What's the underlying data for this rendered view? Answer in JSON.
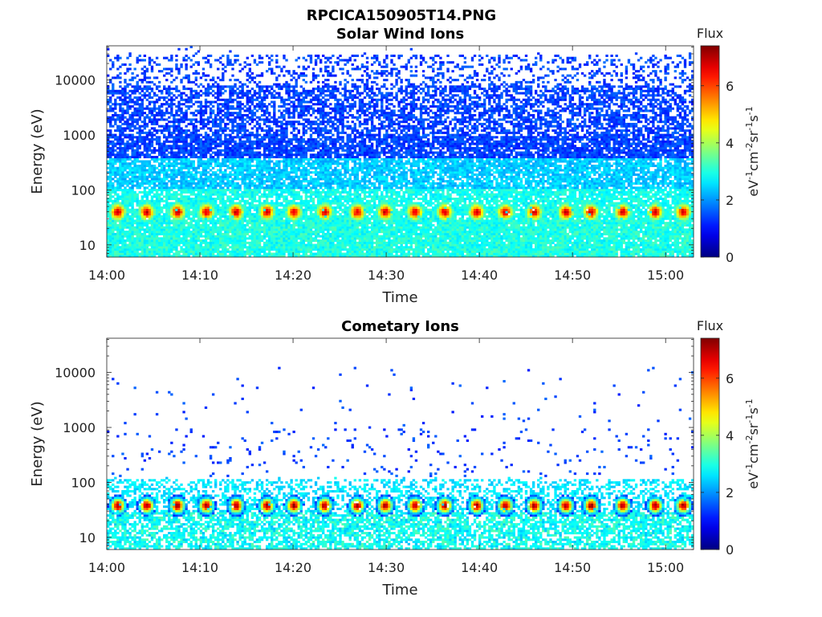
{
  "figure_title": "RPCICA150905T14.PNG",
  "chart_data": [
    {
      "type": "heatmap",
      "title": "Solar Wind Ions",
      "xlabel": "Time",
      "ylabel": "Energy (eV)",
      "x_ticks": [
        "14:00",
        "14:10",
        "14:20",
        "14:30",
        "14:40",
        "14:50",
        "15:00"
      ],
      "y_ticks": [
        "10",
        "100",
        "1000",
        "10000"
      ],
      "y_tick_values": [
        10,
        100,
        1000,
        10000
      ],
      "y_scale": "log",
      "ylim": [
        6,
        42000
      ],
      "xlim_minutes": [
        0,
        63
      ],
      "colorbar": {
        "title": "Flux",
        "unit": "eV-1cm-2sr-1s-1",
        "ticks": [
          "0",
          "2",
          "4",
          "6"
        ],
        "range": [
          0,
          7.4
        ],
        "colormap": "jet"
      },
      "peak_energy_ev": 40,
      "peak_times_min": [
        1.2,
        4.3,
        7.6,
        10.7,
        13.9,
        17.2,
        20.1,
        23.4,
        26.9,
        29.9,
        33.1,
        36.3,
        39.7,
        42.8,
        45.9,
        49.3,
        52.0,
        55.4,
        58.9,
        61.9
      ],
      "peak_flux": 6.8,
      "background_flux": 2.2,
      "max_energy_ev": 30000
    },
    {
      "type": "heatmap",
      "title": "Cometary Ions",
      "xlabel": "Time",
      "ylabel": "Energy (eV)",
      "x_ticks": [
        "14:00",
        "14:10",
        "14:20",
        "14:30",
        "14:40",
        "14:50",
        "15:00"
      ],
      "y_ticks": [
        "10",
        "100",
        "1000",
        "10000"
      ],
      "y_tick_values": [
        10,
        100,
        1000,
        10000
      ],
      "y_scale": "log",
      "ylim": [
        6,
        42000
      ],
      "xlim_minutes": [
        0,
        63
      ],
      "colorbar": {
        "title": "Flux",
        "unit": "eV-1cm-2sr-1s-1",
        "ticks": [
          "0",
          "2",
          "4",
          "6"
        ],
        "range": [
          0,
          7.4
        ],
        "colormap": "jet"
      },
      "peak_energy_ev": 38,
      "peak_times_min": [
        1.2,
        4.3,
        7.6,
        10.7,
        13.9,
        17.2,
        20.1,
        23.4,
        26.9,
        29.9,
        33.1,
        36.3,
        39.7,
        42.8,
        45.9,
        49.3,
        52.0,
        55.4,
        58.9,
        61.9
      ],
      "peak_flux": 7.2,
      "background_flux": 0.6,
      "max_energy_ev": 12000
    }
  ]
}
